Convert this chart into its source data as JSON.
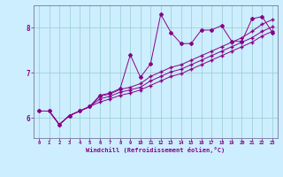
{
  "xlabel": "Windchill (Refroidissement éolien,°C)",
  "ylabel": "",
  "bg_color": "#cceeff",
  "line_color": "#880088",
  "grid_color": "#99cccc",
  "xlim": [
    -0.5,
    23.5
  ],
  "ylim": [
    5.55,
    8.5
  ],
  "yticks": [
    6,
    7,
    8
  ],
  "xticks": [
    0,
    1,
    2,
    3,
    4,
    5,
    6,
    7,
    8,
    9,
    10,
    11,
    12,
    13,
    14,
    15,
    16,
    17,
    18,
    19,
    20,
    21,
    22,
    23
  ],
  "line1_x": [
    0,
    1,
    2,
    3,
    4,
    5,
    6,
    7,
    8,
    9,
    10,
    11,
    12,
    13,
    14,
    15,
    16,
    17,
    18,
    19,
    20,
    21,
    22,
    23
  ],
  "line1_y": [
    6.15,
    6.15,
    5.85,
    6.05,
    6.15,
    6.25,
    6.5,
    6.55,
    6.65,
    7.4,
    6.9,
    7.2,
    8.3,
    7.9,
    7.65,
    7.65,
    7.95,
    7.95,
    8.05,
    7.7,
    7.7,
    8.2,
    8.25,
    7.9
  ],
  "line2_x": [
    0,
    1,
    2,
    3,
    4,
    5,
    6,
    7,
    8,
    9,
    10,
    11,
    12,
    13,
    14,
    15,
    16,
    17,
    18,
    19,
    20,
    21,
    22,
    23
  ],
  "line2_y": [
    6.15,
    6.15,
    5.85,
    6.05,
    6.15,
    6.25,
    6.35,
    6.42,
    6.5,
    6.55,
    6.62,
    6.72,
    6.82,
    6.92,
    6.98,
    7.08,
    7.18,
    7.28,
    7.38,
    7.48,
    7.58,
    7.68,
    7.82,
    7.92
  ],
  "line3_x": [
    0,
    1,
    2,
    3,
    4,
    5,
    6,
    7,
    8,
    9,
    10,
    11,
    12,
    13,
    14,
    15,
    16,
    17,
    18,
    19,
    20,
    21,
    22,
    23
  ],
  "line3_y": [
    6.15,
    6.15,
    5.85,
    6.05,
    6.15,
    6.25,
    6.42,
    6.48,
    6.57,
    6.62,
    6.68,
    6.82,
    6.92,
    7.02,
    7.08,
    7.18,
    7.28,
    7.38,
    7.48,
    7.58,
    7.68,
    7.78,
    7.92,
    8.02
  ],
  "line4_x": [
    0,
    1,
    2,
    3,
    4,
    5,
    6,
    7,
    8,
    9,
    10,
    11,
    12,
    13,
    14,
    15,
    16,
    17,
    18,
    19,
    20,
    21,
    22,
    23
  ],
  "line4_y": [
    6.15,
    6.15,
    5.85,
    6.05,
    6.15,
    6.25,
    6.48,
    6.53,
    6.63,
    6.68,
    6.76,
    6.92,
    7.02,
    7.12,
    7.18,
    7.28,
    7.38,
    7.48,
    7.58,
    7.68,
    7.78,
    7.92,
    8.08,
    8.18
  ]
}
